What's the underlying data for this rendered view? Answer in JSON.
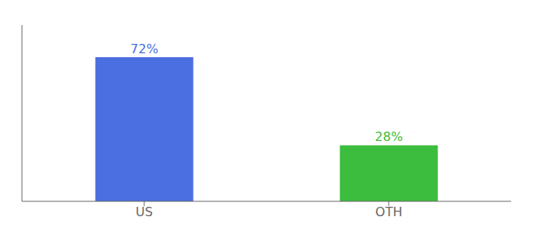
{
  "chart_data": {
    "type": "bar",
    "categories": [
      "US",
      "OTH"
    ],
    "values": [
      72,
      28
    ],
    "value_labels": [
      "72%",
      "28%"
    ],
    "colors": [
      "#4b6fe0",
      "#3dbd3d"
    ],
    "ylim": [
      0,
      88
    ],
    "yticks": [],
    "tick_labels": "x",
    "data_labels": true,
    "grid": false
  }
}
